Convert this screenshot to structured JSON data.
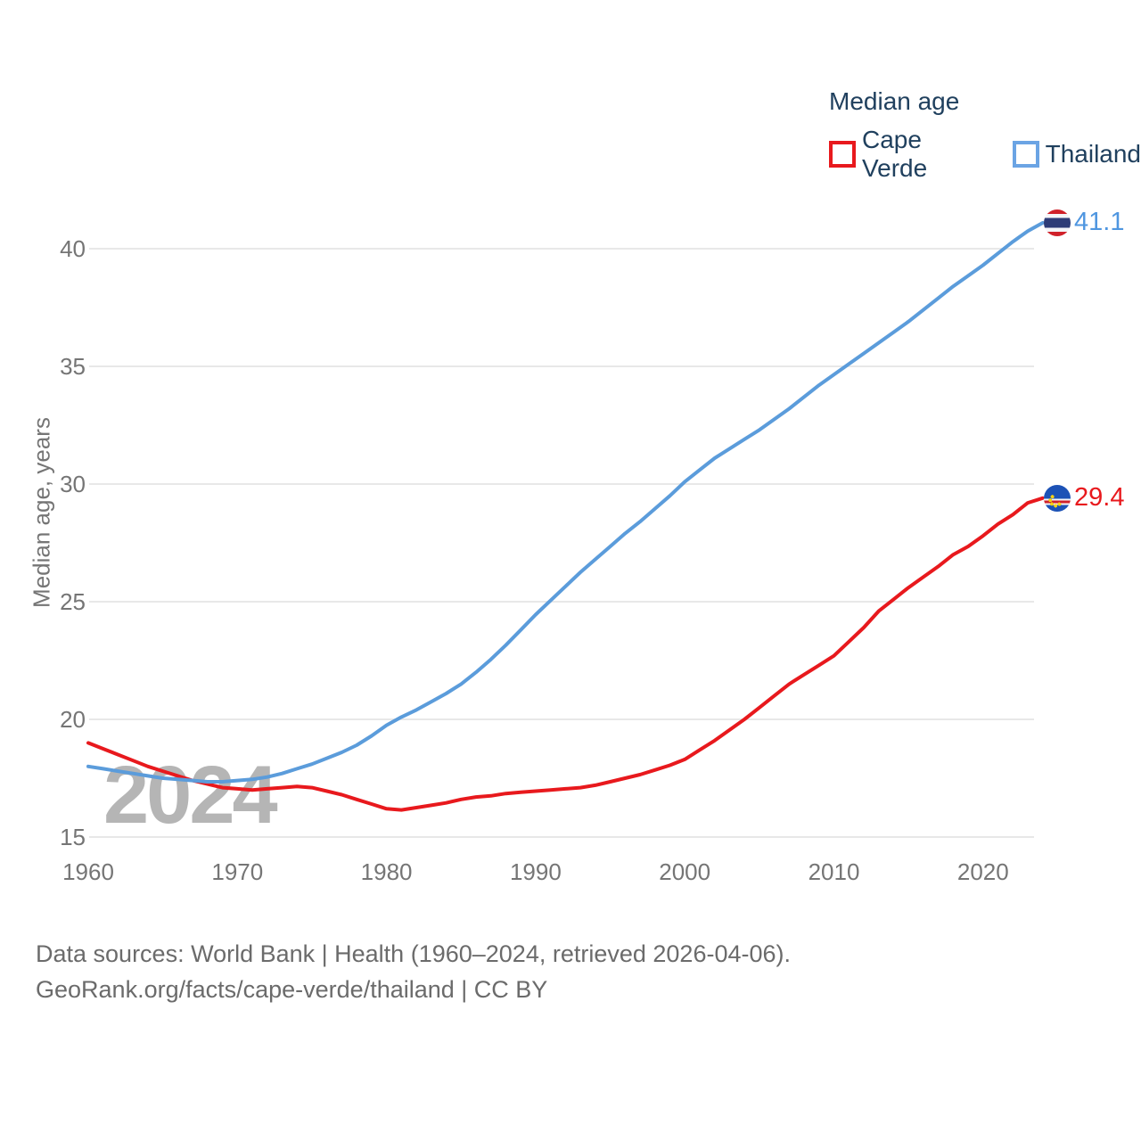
{
  "legend": {
    "title": "Median age",
    "items": [
      {
        "label": "Cape Verde",
        "color": "#e8191d"
      },
      {
        "label": "Thailand",
        "color": "#6ba4e4"
      }
    ]
  },
  "y_axis": {
    "title": "Median age, years",
    "ticks": [
      "15",
      "20",
      "25",
      "30",
      "35",
      "40"
    ]
  },
  "x_axis": {
    "ticks": [
      "1960",
      "1970",
      "1980",
      "1990",
      "2000",
      "2010",
      "2020"
    ]
  },
  "watermark": "2024",
  "end_labels": {
    "thailand": {
      "value": "41.1",
      "flag": "thailand-flag"
    },
    "cape_verde": {
      "value": "29.4",
      "flag": "cape-verde-flag"
    }
  },
  "caption": {
    "line1": "Data sources: World Bank | Health (1960–2024, retrieved 2026-04-06).",
    "line2": "GeoRank.org/facts/cape-verde/thailand | CC BY"
  },
  "chart_data": {
    "type": "line",
    "title": "Median age",
    "ylabel": "Median age, years",
    "x_start": 1960,
    "x_end": 2024,
    "xlim": [
      1960,
      2024
    ],
    "ylim": [
      14.5,
      42
    ],
    "grid": "horizontal",
    "legend_position": "top-right",
    "y_ticks": [
      15,
      20,
      25,
      30,
      35,
      40
    ],
    "x_ticks": [
      1960,
      1970,
      1980,
      1990,
      2000,
      2010,
      2020
    ],
    "series": [
      {
        "name": "Cape Verde",
        "color": "#e8191d",
        "end_value": 29.4,
        "values": [
          19.0,
          18.75,
          18.5,
          18.25,
          18.0,
          17.8,
          17.6,
          17.4,
          17.25,
          17.1,
          17.05,
          17.0,
          17.05,
          17.1,
          17.15,
          17.1,
          16.95,
          16.8,
          16.6,
          16.4,
          16.2,
          16.15,
          16.25,
          16.35,
          16.45,
          16.6,
          16.7,
          16.75,
          16.85,
          16.9,
          16.95,
          17.0,
          17.05,
          17.1,
          17.2,
          17.35,
          17.5,
          17.65,
          17.85,
          18.05,
          18.3,
          18.7,
          19.1,
          19.55,
          20.0,
          20.5,
          21.0,
          21.5,
          21.9,
          22.3,
          22.7,
          23.3,
          23.9,
          24.6,
          25.1,
          25.6,
          26.05,
          26.5,
          27.0,
          27.35,
          27.8,
          28.3,
          28.7,
          29.2,
          29.4
        ]
      },
      {
        "name": "Thailand",
        "color": "#5b9cdb",
        "end_value": 41.1,
        "values": [
          18.0,
          17.9,
          17.8,
          17.7,
          17.6,
          17.5,
          17.45,
          17.4,
          17.35,
          17.35,
          17.4,
          17.45,
          17.55,
          17.7,
          17.9,
          18.1,
          18.35,
          18.6,
          18.9,
          19.3,
          19.75,
          20.1,
          20.4,
          20.75,
          21.1,
          21.5,
          22.0,
          22.55,
          23.15,
          23.8,
          24.45,
          25.05,
          25.65,
          26.25,
          26.8,
          27.35,
          27.9,
          28.4,
          28.95,
          29.5,
          30.1,
          30.6,
          31.1,
          31.5,
          31.9,
          32.3,
          32.75,
          33.2,
          33.7,
          34.2,
          34.65,
          35.1,
          35.55,
          36.0,
          36.45,
          36.9,
          37.4,
          37.9,
          38.4,
          38.85,
          39.3,
          39.8,
          40.3,
          40.75,
          41.1
        ]
      }
    ]
  }
}
